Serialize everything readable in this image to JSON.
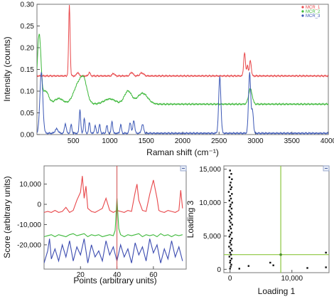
{
  "chart_data": [
    {
      "id": "spectra",
      "type": "line",
      "xlabel": "Raman shift (cm⁻¹)",
      "ylabel": "Intensity (counts)",
      "xlim": [
        0,
        4000
      ],
      "ylim": [
        0,
        0.3
      ],
      "x_ticks": [
        500,
        1000,
        1500,
        2000,
        2500,
        3000,
        3500,
        4000
      ],
      "x_tick_labels": [
        "500",
        "1000",
        "1500",
        "2000",
        "2500",
        "3000",
        "3500",
        "4000"
      ],
      "y_ticks": [
        0,
        0.05,
        0.1,
        0.15,
        0.2,
        0.25,
        0.3
      ],
      "y_tick_labels": [
        "0.00",
        "0.05",
        "0.10",
        "0.15",
        "0.20",
        "0.25",
        "0.30"
      ],
      "legend_position": "top-right",
      "grid": false,
      "series": [
        {
          "name": "MCR_1",
          "color": "#e8474a",
          "baseline": 0.135,
          "peaks": [
            [
              445,
              0.162,
              10
            ],
            [
              560,
              0.008,
              15
            ],
            [
              720,
              0.008,
              12
            ],
            [
              1050,
              0.006,
              15
            ],
            [
              1300,
              0.008,
              20
            ],
            [
              1440,
              0.007,
              25
            ],
            [
              2850,
              0.054,
              12
            ],
            [
              2890,
              0.025,
              10
            ],
            [
              2930,
              0.036,
              12
            ]
          ]
        },
        {
          "name": "MCR_2",
          "color": "#3db83a",
          "baseline": 0.07,
          "peaks": [
            [
              30,
              0.16,
              25
            ],
            [
              120,
              0.03,
              40
            ],
            [
              300,
              0.013,
              60
            ],
            [
              580,
              0.05,
              70
            ],
            [
              650,
              0.03,
              40
            ],
            [
              1000,
              0.012,
              80
            ],
            [
              1250,
              0.03,
              50
            ],
            [
              1450,
              0.025,
              70
            ],
            [
              2930,
              0.035,
              25
            ]
          ]
        },
        {
          "name": "MCR_3",
          "color": "#3b57b5",
          "baseline": 0.003,
          "peaks": [
            [
              60,
              0.14,
              20
            ],
            [
              270,
              0.01,
              20
            ],
            [
              390,
              0.022,
              12
            ],
            [
              470,
              0.02,
              10
            ],
            [
              590,
              0.055,
              10
            ],
            [
              650,
              0.035,
              10
            ],
            [
              720,
              0.025,
              10
            ],
            [
              800,
              0.018,
              10
            ],
            [
              860,
              0.02,
              10
            ],
            [
              960,
              0.018,
              10
            ],
            [
              1030,
              0.028,
              10
            ],
            [
              1150,
              0.02,
              10
            ],
            [
              1280,
              0.025,
              12
            ],
            [
              1330,
              0.03,
              12
            ],
            [
              1450,
              0.02,
              15
            ],
            [
              2510,
              0.13,
              15
            ],
            [
              2920,
              0.14,
              15
            ],
            [
              2960,
              0.05,
              12
            ]
          ]
        }
      ]
    },
    {
      "id": "scores",
      "type": "line",
      "xlabel": "Points (arbitrary units)",
      "ylabel": "Score (arbitrary units)",
      "xlim": [
        0,
        78
      ],
      "ylim": [
        -32000,
        19000
      ],
      "x_ticks": [
        20,
        40,
        60
      ],
      "x_tick_labels": [
        "20",
        "40",
        "60"
      ],
      "y_ticks": [
        10000,
        0,
        -10000,
        -20000
      ],
      "y_tick_labels": [
        "10,000",
        "0",
        "-10,000",
        "-20,000"
      ],
      "cursor_x": 40,
      "cursor_color": "#d04848",
      "series": [
        {
          "name": "MCR_1",
          "color": "#e8474a",
          "x": [
            0,
            2,
            4,
            6,
            8,
            10,
            12,
            14,
            16,
            18,
            20,
            21,
            22,
            23,
            24,
            26,
            28,
            30,
            32,
            34,
            36,
            38,
            40,
            42,
            44,
            46,
            48,
            50,
            51,
            52,
            54,
            56,
            58,
            60,
            62,
            63,
            64,
            66,
            68,
            70,
            72,
            74,
            75,
            76
          ],
          "y": [
            -4000,
            -3500,
            -4000,
            -3000,
            -4000,
            -3500,
            -1500,
            -4000,
            -3000,
            2000,
            6000,
            14000,
            3000,
            9000,
            -2000,
            -3500,
            -4000,
            -3000,
            -2000,
            3000,
            -3000,
            -4000,
            -3000,
            -3500,
            -4000,
            -3000,
            -3500,
            6000,
            10000,
            2000,
            -3000,
            -3500,
            5000,
            12000,
            3000,
            -3000,
            -3500,
            -4000,
            -3000,
            -3500,
            -4000,
            -3000,
            7000,
            -2000
          ]
        },
        {
          "name": "MCR_2",
          "color": "#3db83a",
          "x": [
            0,
            2,
            4,
            6,
            8,
            10,
            12,
            14,
            16,
            18,
            20,
            22,
            24,
            26,
            28,
            30,
            32,
            34,
            36,
            38,
            39,
            40,
            41,
            42,
            44,
            46,
            48,
            50,
            52,
            54,
            56,
            58,
            60,
            62,
            64,
            66,
            68,
            70,
            72,
            74,
            76
          ],
          "y": [
            -16000,
            -15500,
            -15000,
            -16000,
            -15000,
            -15500,
            -16000,
            -15000,
            -14500,
            -15500,
            -15000,
            -14500,
            -16000,
            -15000,
            -15500,
            -15000,
            -16000,
            -15500,
            -15000,
            -15500,
            -13000,
            3000,
            -12000,
            -15000,
            -16000,
            -15000,
            -15500,
            -15000,
            -14500,
            -16000,
            -15000,
            -15500,
            -15000,
            -16000,
            -14500,
            -15500,
            -15000,
            -16000,
            -15000,
            -15500,
            -15000
          ]
        },
        {
          "name": "MCR_3",
          "color": "#3b4bb0",
          "x": [
            0,
            2,
            3,
            4,
            6,
            8,
            10,
            12,
            14,
            16,
            18,
            20,
            22,
            24,
            26,
            28,
            30,
            32,
            34,
            36,
            38,
            40,
            42,
            44,
            46,
            48,
            50,
            52,
            54,
            56,
            58,
            60,
            62,
            64,
            66,
            68,
            70,
            72,
            74,
            76
          ],
          "y": [
            -29000,
            -23000,
            -17000,
            -27000,
            -22000,
            -28000,
            -20000,
            -26000,
            -18000,
            -28000,
            -21000,
            -25000,
            -17000,
            -29000,
            -20000,
            -26000,
            -23000,
            -28000,
            -18000,
            -25000,
            -21000,
            -28000,
            -20000,
            -26000,
            -22000,
            -29000,
            -19000,
            -25000,
            -21000,
            -28000,
            -17000,
            -24000,
            -20000,
            -29000,
            -22000,
            -27000,
            -18000,
            -26000,
            -21000,
            -28000
          ]
        }
      ]
    },
    {
      "id": "loadings",
      "type": "scatter",
      "xlabel": "Loading 1",
      "ylabel": "Loading 3",
      "xlim": [
        -1000,
        16000
      ],
      "ylim": [
        -500,
        15500
      ],
      "x_ticks": [
        0,
        10000
      ],
      "x_tick_labels": [
        "0",
        "10,000"
      ],
      "y_ticks": [
        15000,
        10000,
        5000,
        0
      ],
      "y_tick_labels": [
        "15,000",
        "10,000",
        "5,000",
        "0"
      ],
      "crosshair": {
        "x": 8200,
        "y": 2200,
        "color": "#8cc63f"
      },
      "point_color": "#111111",
      "points": [
        [
          0,
          14800
        ],
        [
          200,
          14300
        ],
        [
          -100,
          13800
        ],
        [
          300,
          13500
        ],
        [
          100,
          13000
        ],
        [
          0,
          12600
        ],
        [
          250,
          12300
        ],
        [
          100,
          12000
        ],
        [
          -200,
          11600
        ],
        [
          300,
          11300
        ],
        [
          0,
          11000
        ],
        [
          150,
          10600
        ],
        [
          -100,
          10300
        ],
        [
          350,
          10000
        ],
        [
          100,
          9700
        ],
        [
          0,
          9400
        ],
        [
          250,
          9100
        ],
        [
          -150,
          8800
        ],
        [
          100,
          8500
        ],
        [
          300,
          8200
        ],
        [
          0,
          7900
        ],
        [
          200,
          7600
        ],
        [
          -100,
          7300
        ],
        [
          100,
          7000
        ],
        [
          350,
          6700
        ],
        [
          0,
          6400
        ],
        [
          150,
          6100
        ],
        [
          -200,
          5800
        ],
        [
          250,
          5500
        ],
        [
          50,
          5200
        ],
        [
          -100,
          4900
        ],
        [
          300,
          4600
        ],
        [
          100,
          4300
        ],
        [
          0,
          4000
        ],
        [
          200,
          3700
        ],
        [
          -150,
          3400
        ],
        [
          100,
          3100
        ],
        [
          300,
          2800
        ],
        [
          0,
          2500
        ],
        [
          150,
          2200
        ],
        [
          -100,
          1900
        ],
        [
          250,
          1600
        ],
        [
          50,
          1300
        ],
        [
          0,
          1000
        ],
        [
          200,
          700
        ],
        [
          100,
          400
        ],
        [
          0,
          100
        ],
        [
          1500,
          100
        ],
        [
          3000,
          500
        ],
        [
          6500,
          1000
        ],
        [
          7000,
          600
        ],
        [
          8200,
          2200
        ],
        [
          12500,
          200
        ],
        [
          15500,
          2500
        ],
        [
          15500,
          300
        ]
      ]
    }
  ]
}
